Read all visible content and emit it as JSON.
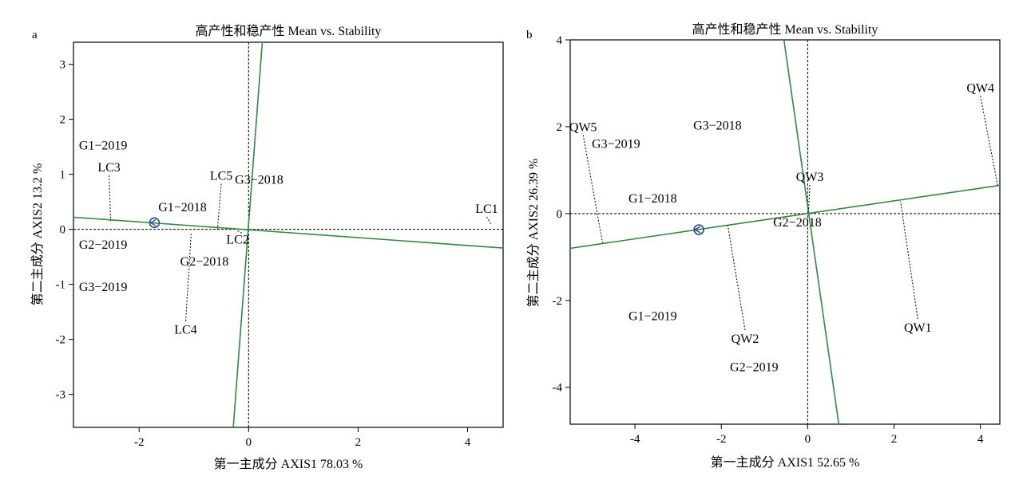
{
  "chart_data": [
    {
      "type": "scatter",
      "panel": "a",
      "title": "高产性和稳产性 Mean vs. Stability",
      "xlabel": "第一主成分 AXIS1 78.03 %",
      "ylabel": "第二主成分 AXIS2 13.2 %",
      "xlim": [
        -3.2,
        4.65
      ],
      "ylim": [
        -3.6,
        3.4
      ],
      "xticks": [
        -2,
        0,
        2,
        4
      ],
      "xtick_labels": [
        "-2",
        "0",
        "2",
        "4"
      ],
      "yticks": [
        -3,
        -2,
        -1,
        0,
        1,
        2,
        3
      ],
      "ytick_labels": [
        "-3",
        "-2",
        "-1",
        "0",
        "1",
        "2",
        "3"
      ],
      "environments": [
        {
          "name": "G1−2019",
          "x": -3.1,
          "y": 1.45
        },
        {
          "name": "G1−2018",
          "x": -1.65,
          "y": 0.33
        },
        {
          "name": "G3−2018",
          "x": -0.25,
          "y": 0.83
        },
        {
          "name": "G2−2019",
          "x": -3.1,
          "y": -0.35
        },
        {
          "name": "G2−2018",
          "x": -1.25,
          "y": -0.66
        },
        {
          "name": "G3−2019",
          "x": -3.1,
          "y": -1.12
        }
      ],
      "genotypes": [
        {
          "name": "LC1",
          "x": 4.35,
          "y": 0.3,
          "lx": 4.43,
          "ly": 0.09
        },
        {
          "name": "LC2",
          "x": -0.2,
          "y": -0.26,
          "lx": -0.1,
          "ly": -0.08
        },
        {
          "name": "LC3",
          "x": -2.55,
          "y": 1.05,
          "lx": -2.52,
          "ly": 0.15
        },
        {
          "name": "LC4",
          "x": -1.15,
          "y": -1.9,
          "lx": -1.05,
          "ly": -0.08
        },
        {
          "name": "LC5",
          "x": -0.5,
          "y": 0.9,
          "lx": -0.57,
          "ly": -0.02
        }
      ],
      "mean_env": {
        "x": -1.72,
        "y": 0.12
      },
      "aec_abscissa": [
        [
          -3.2,
          0.22
        ],
        [
          4.65,
          -0.34
        ]
      ],
      "aec_ordinate": [
        [
          0.25,
          3.4
        ],
        [
          -0.28,
          -3.6
        ]
      ],
      "grid": false
    },
    {
      "type": "scatter",
      "panel": "b",
      "title": "高产性和稳产性 Mean vs. Stability",
      "xlabel": "第一主成分 AXIS1 52.65 %",
      "ylabel": "第二主成分 AXIS2 26.39 %",
      "xlim": [
        -5.5,
        4.45
      ],
      "ylim": [
        -4.85,
        4.0
      ],
      "xticks": [
        -4,
        -2,
        0,
        2,
        4
      ],
      "xtick_labels": [
        "-4",
        "-2",
        "0",
        "2",
        "4"
      ],
      "yticks": [
        -4,
        -2,
        0,
        2,
        4
      ],
      "ytick_labels": [
        "-4",
        "-2",
        "0",
        "2",
        "4"
      ],
      "environments": [
        {
          "name": "G3−2018",
          "x": -2.65,
          "y": 1.93
        },
        {
          "name": "G3−2019",
          "x": -5.0,
          "y": 1.51
        },
        {
          "name": "G1−2018",
          "x": -4.15,
          "y": 0.25
        },
        {
          "name": "G2−2018",
          "x": -0.8,
          "y": -0.3
        },
        {
          "name": "G1−2019",
          "x": -4.15,
          "y": -2.45
        },
        {
          "name": "G2−2019",
          "x": -1.8,
          "y": -3.63
        }
      ],
      "genotypes": [
        {
          "name": "QW1",
          "x": 2.55,
          "y": -2.72,
          "lx": 2.15,
          "ly": 0.28
        },
        {
          "name": "QW2",
          "x": -1.45,
          "y": -2.98,
          "lx": -1.85,
          "ly": -0.27
        },
        {
          "name": "QW3",
          "x": 0.05,
          "y": 0.75,
          "lx": 0.02,
          "ly": 0.05
        },
        {
          "name": "QW4",
          "x": 4.0,
          "y": 2.8,
          "lx": 4.4,
          "ly": 0.65
        },
        {
          "name": "QW5",
          "x": -5.2,
          "y": 1.9,
          "lx": -4.75,
          "ly": -0.68
        }
      ],
      "mean_env": {
        "x": -2.52,
        "y": -0.37
      },
      "aec_abscissa": [
        [
          -5.5,
          -0.8
        ],
        [
          4.45,
          0.65
        ]
      ],
      "aec_ordinate": [
        [
          -0.55,
          4.0
        ],
        [
          0.72,
          -4.85
        ]
      ],
      "grid": false
    }
  ]
}
